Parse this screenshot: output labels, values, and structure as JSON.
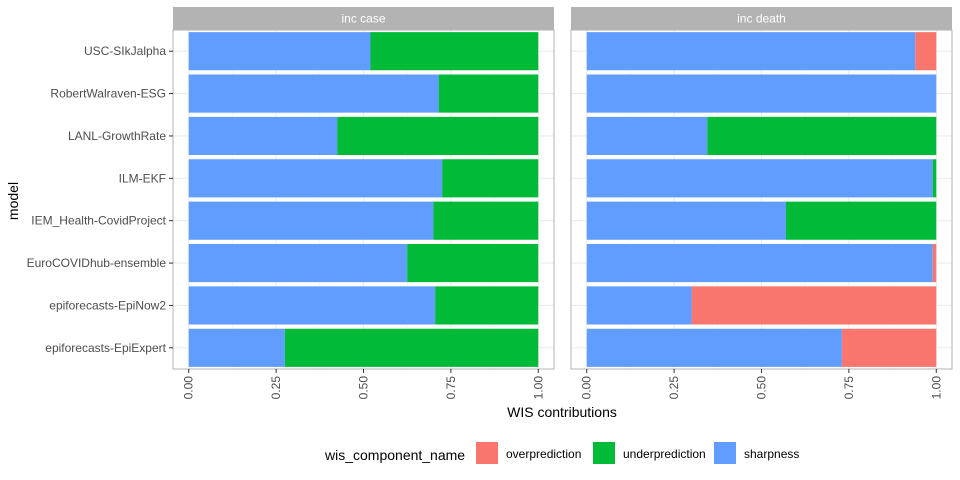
{
  "chart_data": {
    "type": "bar",
    "orientation": "horizontal",
    "stacked": true,
    "xlabel": "WIS contributions",
    "ylabel": "model",
    "xlim": [
      0,
      1
    ],
    "xticks": [
      "0.00",
      "0.25",
      "0.50",
      "0.75",
      "1.00"
    ],
    "xtick_values": [
      0,
      0.25,
      0.5,
      0.75,
      1.0
    ],
    "grid": true,
    "legend": {
      "title": "wis_component_name",
      "position": "bottom",
      "entries": [
        {
          "name": "overprediction",
          "color": "#F8766D"
        },
        {
          "name": "underprediction",
          "color": "#00BA38"
        },
        {
          "name": "sharpness",
          "color": "#619CFF"
        }
      ]
    },
    "stack_order": [
      "sharpness",
      "underprediction",
      "overprediction"
    ],
    "categories": [
      "USC-SIkJalpha",
      "RobertWalraven-ESG",
      "LANL-GrowthRate",
      "ILM-EKF",
      "IEM_Health-CovidProject",
      "EuroCOVIDhub-ensemble",
      "epiforecasts-EpiNow2",
      "epiforecasts-EpiExpert"
    ],
    "panels": [
      {
        "title": "inc case",
        "series": [
          {
            "name": "sharpness",
            "values": [
              0.52,
              0.715,
              0.425,
              0.725,
              0.7,
              0.625,
              0.705,
              0.275
            ]
          },
          {
            "name": "underprediction",
            "values": [
              0.48,
              0.285,
              0.575,
              0.275,
              0.3,
              0.375,
              0.295,
              0.725
            ]
          },
          {
            "name": "overprediction",
            "values": [
              0,
              0,
              0,
              0,
              0,
              0,
              0,
              0
            ]
          }
        ]
      },
      {
        "title": "inc death",
        "series": [
          {
            "name": "sharpness",
            "values": [
              0.94,
              1.0,
              0.345,
              0.99,
              0.57,
              0.99,
              0.3,
              0.73
            ]
          },
          {
            "name": "underprediction",
            "values": [
              0,
              0,
              0.655,
              0.01,
              0.43,
              0,
              0,
              0
            ]
          },
          {
            "name": "overprediction",
            "values": [
              0.06,
              0,
              0,
              0,
              0,
              0.01,
              0.7,
              0.27
            ]
          }
        ]
      }
    ]
  }
}
